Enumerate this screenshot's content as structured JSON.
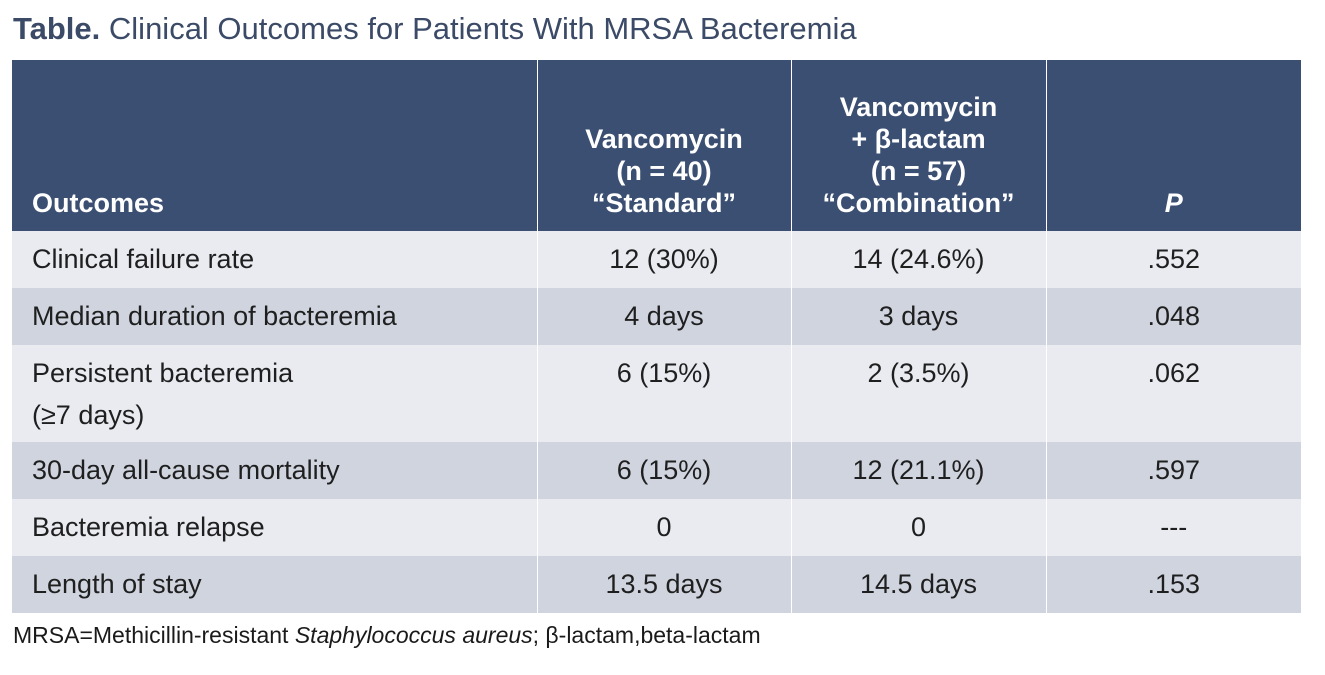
{
  "title": {
    "lead": "Table.",
    "text": "Clinical Outcomes for Patients With MRSA Bacteremia"
  },
  "columns": {
    "outcomes": "Outcomes",
    "standard": [
      "Vancomycin",
      "(n = 40)",
      "“Standard”"
    ],
    "combination": [
      "Vancomycin",
      "+ β-lactam",
      "(n = 57)",
      "“Combination”"
    ],
    "p": "P"
  },
  "rows": [
    {
      "outcome": "Clinical failure rate",
      "outcome_line2": "",
      "standard": "12 (30%)",
      "combination": "14 (24.6%)",
      "p": ".552"
    },
    {
      "outcome": "Median duration of bacteremia",
      "outcome_line2": "",
      "standard": "4 days",
      "combination": "3 days",
      "p": ".048"
    },
    {
      "outcome": "Persistent bacteremia",
      "outcome_line2": "(≥7 days)",
      "standard": "6 (15%)",
      "combination": "2 (3.5%)",
      "p": ".062"
    },
    {
      "outcome": "30-day all-cause mortality",
      "outcome_line2": "",
      "standard": "6 (15%)",
      "combination": "12 (21.1%)",
      "p": ".597"
    },
    {
      "outcome": "Bacteremia relapse",
      "outcome_line2": "",
      "standard": "0",
      "combination": "0",
      "p": "---"
    },
    {
      "outcome": "Length of stay",
      "outcome_line2": "",
      "standard": "13.5 days",
      "combination": "14.5 days",
      "p": ".153"
    }
  ],
  "footnote": {
    "part1": "MRSA=Methicillin-resistant ",
    "italic": "Staphylococcus aureus",
    "part2": "; β-lactam,beta-lactam"
  }
}
